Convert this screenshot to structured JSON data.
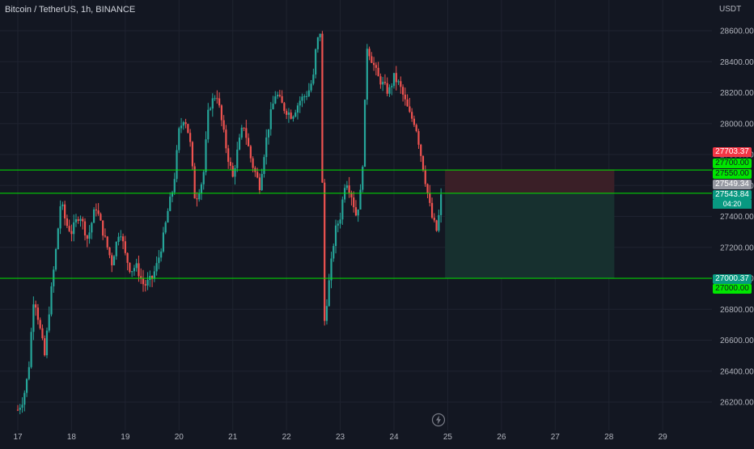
{
  "header": {
    "symbol": "Bitcoin / TetherUS, 1h, BINANCE",
    "axis_unit": "USDT"
  },
  "colors": {
    "background": "#131722",
    "grid": "#1f2330",
    "up": "#26a69a",
    "down": "#ef5350",
    "level_line": "#00e600",
    "stop_zone": "#3a1f27",
    "target_zone": "#17302f",
    "axis_text": "#b2b5be"
  },
  "price_labels": {
    "p27703": "27703.37",
    "p27700": "27700.00",
    "p27550": "27550.00",
    "p27549": "27549.34",
    "p27543": "27543.84",
    "countdown": "04:20",
    "p27000a": "27000.37",
    "p27000b": "27000.00"
  },
  "chart_data": {
    "type": "candlestick",
    "title": "Bitcoin / TetherUS, 1h, BINANCE",
    "ylabel": "USDT",
    "xlabel": "",
    "ylim": [
      26050,
      28800
    ],
    "xlim": [
      17,
      29.3
    ],
    "grid": true,
    "y_ticks": [
      "28600.00",
      "28400.00",
      "28200.00",
      "28000.00",
      "27800.00",
      "27600.00",
      "27400.00",
      "27200.00",
      "27000.00",
      "26800.00",
      "26600.00",
      "26400.00",
      "26200.00"
    ],
    "y_tick_values": [
      28600,
      28400,
      28200,
      28000,
      27800,
      27600,
      27400,
      27200,
      27000,
      26800,
      26600,
      26400,
      26200
    ],
    "x_ticks": [
      "17",
      "18",
      "19",
      "20",
      "21",
      "22",
      "23",
      "24",
      "25",
      "26",
      "27",
      "28",
      "29"
    ],
    "x_tick_values": [
      17,
      18,
      19,
      20,
      21,
      22,
      23,
      24,
      25,
      26,
      27,
      28,
      29
    ],
    "horizontal_levels": [
      27550,
      27700,
      27000
    ],
    "position": {
      "entry": 27549.34,
      "stop": 27703.37,
      "target": 27000.37,
      "start_x": 24.95,
      "end_x": 28.1
    },
    "close_path": [
      [
        17.0,
        26150
      ],
      [
        17.1,
        26220
      ],
      [
        17.2,
        26400
      ],
      [
        17.3,
        26900
      ],
      [
        17.4,
        26700
      ],
      [
        17.5,
        26500
      ],
      [
        17.6,
        26850
      ],
      [
        17.7,
        27150
      ],
      [
        17.8,
        27500
      ],
      [
        17.9,
        27350
      ],
      [
        18.0,
        27300
      ],
      [
        18.15,
        27420
      ],
      [
        18.3,
        27250
      ],
      [
        18.45,
        27470
      ],
      [
        18.6,
        27280
      ],
      [
        18.75,
        27100
      ],
      [
        18.9,
        27330
      ],
      [
        19.0,
        27150
      ],
      [
        19.1,
        27050
      ],
      [
        19.2,
        27080
      ],
      [
        19.35,
        26950
      ],
      [
        19.5,
        27000
      ],
      [
        19.6,
        27100
      ],
      [
        19.7,
        27250
      ],
      [
        19.8,
        27450
      ],
      [
        19.9,
        27600
      ],
      [
        20.0,
        27950
      ],
      [
        20.1,
        28050
      ],
      [
        20.2,
        27900
      ],
      [
        20.3,
        27500
      ],
      [
        20.45,
        27650
      ],
      [
        20.55,
        28100
      ],
      [
        20.7,
        28200
      ],
      [
        20.8,
        28000
      ],
      [
        20.9,
        27800
      ],
      [
        21.0,
        27650
      ],
      [
        21.1,
        27850
      ],
      [
        21.2,
        28000
      ],
      [
        21.35,
        27750
      ],
      [
        21.5,
        27600
      ],
      [
        21.6,
        27850
      ],
      [
        21.7,
        28050
      ],
      [
        21.8,
        28200
      ],
      [
        21.95,
        28100
      ],
      [
        22.1,
        28050
      ],
      [
        22.25,
        28150
      ],
      [
        22.4,
        28200
      ],
      [
        22.5,
        28300
      ],
      [
        22.55,
        28500
      ],
      [
        22.63,
        28600
      ],
      [
        22.7,
        26700
      ],
      [
        22.8,
        27000
      ],
      [
        22.9,
        27300
      ],
      [
        23.0,
        27400
      ],
      [
        23.1,
        27650
      ],
      [
        23.2,
        27550
      ],
      [
        23.3,
        27400
      ],
      [
        23.4,
        27600
      ],
      [
        23.5,
        28500
      ],
      [
        23.6,
        28400
      ],
      [
        23.7,
        28300
      ],
      [
        23.8,
        28250
      ],
      [
        23.9,
        28200
      ],
      [
        24.0,
        28300
      ],
      [
        24.1,
        28250
      ],
      [
        24.2,
        28150
      ],
      [
        24.3,
        28050
      ],
      [
        24.4,
        28000
      ],
      [
        24.5,
        27800
      ],
      [
        24.6,
        27600
      ],
      [
        24.7,
        27400
      ],
      [
        24.8,
        27300
      ],
      [
        24.88,
        27540
      ]
    ]
  }
}
